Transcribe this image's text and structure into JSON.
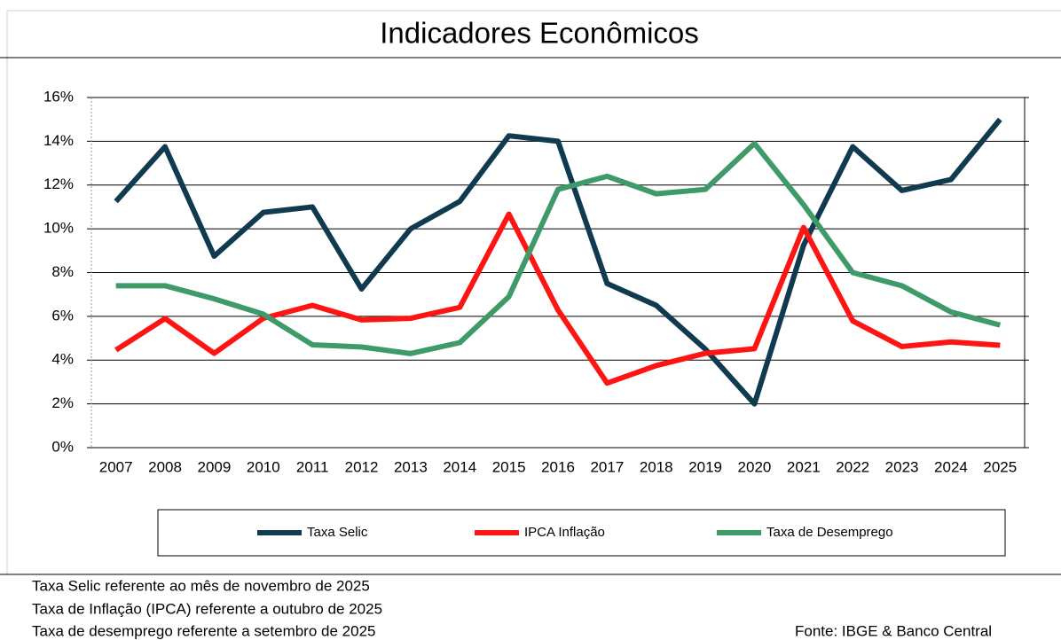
{
  "chart_data": {
    "type": "line",
    "title": "Indicadores Econômicos",
    "categories": [
      "2007",
      "2008",
      "2009",
      "2010",
      "2011",
      "2012",
      "2013",
      "2014",
      "2015",
      "2016",
      "2017",
      "2018",
      "2019",
      "2020",
      "2021",
      "2022",
      "2023",
      "2024",
      "2025"
    ],
    "series": [
      {
        "name": "Taxa Selic",
        "color": "#0f3a4f",
        "values": [
          11.25,
          13.75,
          8.75,
          10.75,
          11.0,
          7.25,
          10.0,
          11.25,
          14.25,
          14.0,
          7.5,
          6.5,
          4.5,
          2.0,
          9.25,
          13.75,
          11.75,
          12.25,
          15.0
        ]
      },
      {
        "name": "IPCA Inflação",
        "color": "#ff1414",
        "values": [
          4.46,
          5.9,
          4.31,
          5.91,
          6.5,
          5.84,
          5.91,
          6.41,
          10.67,
          6.29,
          2.95,
          3.75,
          4.31,
          4.52,
          10.06,
          5.79,
          4.62,
          4.83,
          4.68
        ]
      },
      {
        "name": "Taxa de Desemprego",
        "color": "#3f9a6a",
        "values": [
          7.4,
          7.4,
          6.8,
          6.1,
          4.7,
          4.6,
          4.3,
          4.8,
          6.9,
          11.8,
          12.4,
          11.6,
          11.8,
          13.9,
          11.1,
          8.0,
          7.4,
          6.2,
          5.6
        ]
      }
    ],
    "ylim": [
      0,
      16
    ],
    "yticks": [
      {
        "value": 0,
        "label": "0%"
      },
      {
        "value": 2,
        "label": "2%"
      },
      {
        "value": 4,
        "label": "4%"
      },
      {
        "value": 6,
        "label": "6%"
      },
      {
        "value": 8,
        "label": "8%"
      },
      {
        "value": 10,
        "label": "10%"
      },
      {
        "value": 12,
        "label": "12%"
      },
      {
        "value": 14,
        "label": "14%"
      },
      {
        "value": 16,
        "label": "16%"
      }
    ],
    "grid": true,
    "legend": "bottom"
  },
  "notes": [
    "Taxa Selic referente ao mês de novembro de 2025",
    "Taxa de Inflação (IPCA) referente a outubro de 2025",
    "Taxa de desemprego referente a setembro de 2025"
  ],
  "source": "Fonte:  IBGE & Banco Central"
}
